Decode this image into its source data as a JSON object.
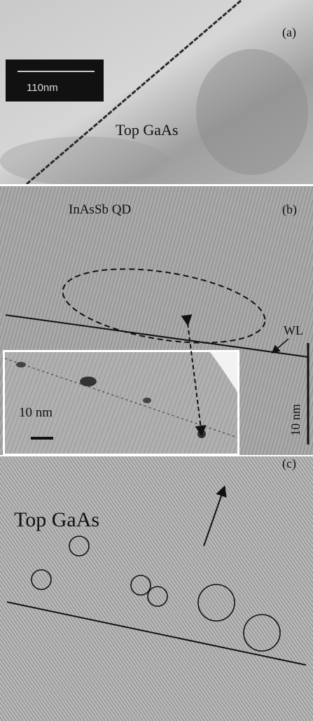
{
  "panels": [
    {
      "label": "(a)",
      "scale_bar": "110nm",
      "annotations": [
        "Top GaAs"
      ]
    },
    {
      "label": "(b)",
      "annotations": [
        "InAsSb QD",
        "WL"
      ],
      "scale_bar": "10 nm",
      "inset_scale_bar": "10 nm"
    },
    {
      "label": "(c)",
      "annotations": [
        "Top GaAs"
      ]
    }
  ]
}
